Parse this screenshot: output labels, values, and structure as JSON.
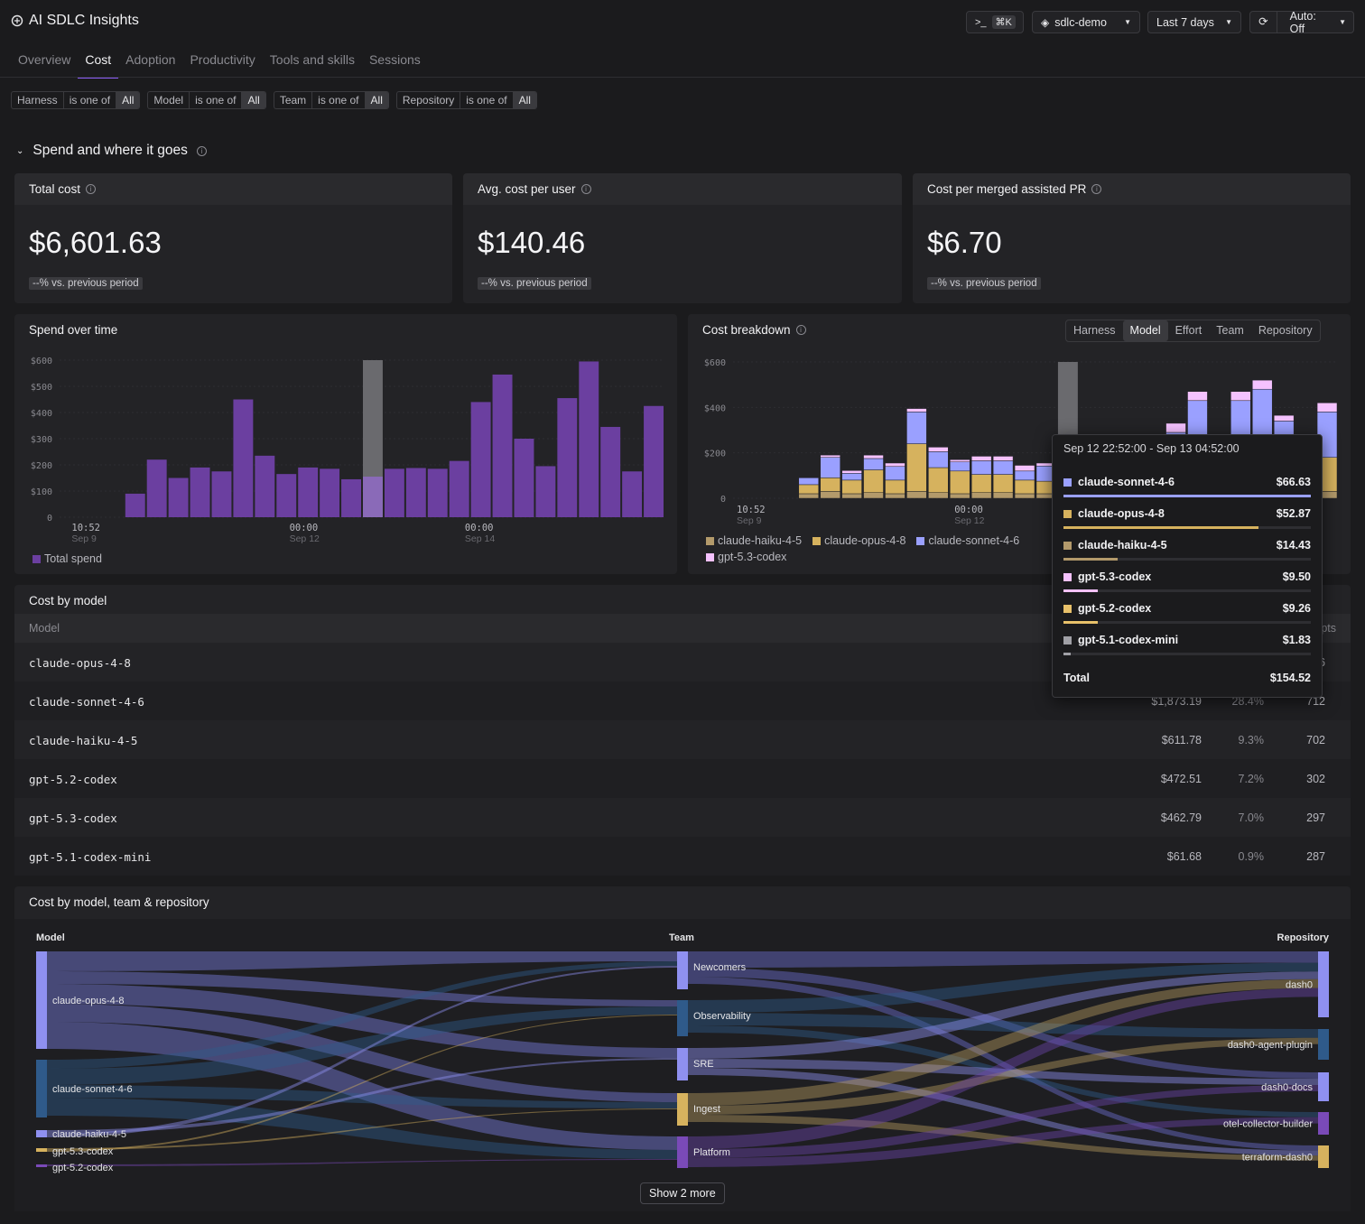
{
  "app": {
    "title": "AI SDLC Insights"
  },
  "toolbar": {
    "command_key": "⌘K",
    "workspace": "sdlc-demo",
    "time_range": "Last 7 days",
    "auto_refresh": "Auto: Off"
  },
  "tabs": [
    {
      "label": "Overview",
      "active": false
    },
    {
      "label": "Cost",
      "active": true
    },
    {
      "label": "Adoption",
      "active": false
    },
    {
      "label": "Productivity",
      "active": false
    },
    {
      "label": "Tools and skills",
      "active": false
    },
    {
      "label": "Sessions",
      "active": false
    }
  ],
  "filters": [
    {
      "field": "Harness",
      "op": "is one of",
      "value": "All"
    },
    {
      "field": "Model",
      "op": "is one of",
      "value": "All"
    },
    {
      "field": "Team",
      "op": "is one of",
      "value": "All"
    },
    {
      "field": "Repository",
      "op": "is one of",
      "value": "All"
    }
  ],
  "section": {
    "title": "Spend and where it goes"
  },
  "kpis": [
    {
      "label": "Total cost",
      "value": "$6,601.63",
      "delta": "--% vs. previous period"
    },
    {
      "label": "Avg. cost per user",
      "value": "$140.46",
      "delta": "--% vs. previous period"
    },
    {
      "label": "Cost per merged assisted PR",
      "value": "$6.70",
      "delta": "--% vs. previous period"
    }
  ],
  "spend_chart": {
    "title": "Spend over time",
    "legend": "Total spend"
  },
  "breakdown": {
    "title": "Cost breakdown",
    "toggle": [
      "Harness",
      "Model",
      "Effort",
      "Team",
      "Repository"
    ],
    "toggle_active": "Model",
    "legend": [
      "claude-haiku-4-5",
      "claude-opus-4-8",
      "claude-sonnet-4-6",
      "gpt-5.3-codex"
    ]
  },
  "tooltip": {
    "title": "Sep 12 22:52:00 - Sep 13 04:52:00",
    "rows": [
      {
        "label": "claude-sonnet-4-6",
        "value": "$66.63",
        "frac": 1.0,
        "color": "#9aa0ff"
      },
      {
        "label": "claude-opus-4-8",
        "value": "$52.87",
        "frac": 0.79,
        "color": "#d6b25e"
      },
      {
        "label": "claude-haiku-4-5",
        "value": "$14.43",
        "frac": 0.22,
        "color": "#b39a6b"
      },
      {
        "label": "gpt-5.3-codex",
        "value": "$9.50",
        "frac": 0.14,
        "color": "#f5c2ff"
      },
      {
        "label": "gpt-5.2-codex",
        "value": "$9.26",
        "frac": 0.14,
        "color": "#e8c16a"
      },
      {
        "label": "gpt-5.1-codex-mini",
        "value": "$1.83",
        "frac": 0.03,
        "color": "#a0a0a6"
      }
    ],
    "total_label": "Total",
    "total_value": "$154.52"
  },
  "cost_by_model": {
    "title": "Cost by model",
    "col_model": "Model",
    "col_prompts_partial": "pts",
    "rows": [
      {
        "name": "claude-opus-4-8",
        "cost": "",
        "share": "",
        "prompts": "6"
      },
      {
        "name": "claude-sonnet-4-6",
        "cost": "$1,873.19",
        "share": "28.4%",
        "prompts": "712"
      },
      {
        "name": "claude-haiku-4-5",
        "cost": "$611.78",
        "share": "9.3%",
        "prompts": "702"
      },
      {
        "name": "gpt-5.2-codex",
        "cost": "$472.51",
        "share": "7.2%",
        "prompts": "302"
      },
      {
        "name": "gpt-5.3-codex",
        "cost": "$462.79",
        "share": "7.0%",
        "prompts": "297"
      },
      {
        "name": "gpt-5.1-codex-mini",
        "cost": "$61.68",
        "share": "0.9%",
        "prompts": "287"
      }
    ]
  },
  "sankey": {
    "title": "Cost by model, team & repository",
    "col_model": "Model",
    "col_team": "Team",
    "col_repo": "Repository",
    "models": [
      "claude-opus-4-8",
      "claude-sonnet-4-6",
      "claude-haiku-4-5",
      "gpt-5.3-codex",
      "gpt-5.2-codex"
    ],
    "teams": [
      "Newcomers",
      "Observability",
      "SRE",
      "Ingest",
      "Platform"
    ],
    "repos": [
      "dash0",
      "dash0-agent-plugin",
      "dash0-docs",
      "otel-collector-builder",
      "terraform-dash0"
    ],
    "show_more": "Show 2 more"
  },
  "chart_data": [
    {
      "type": "bar",
      "title": "Spend over time",
      "ylim": [
        0,
        600
      ],
      "yticks": [
        "$600",
        "$500",
        "$400",
        "$300",
        "$200",
        "$100",
        "0"
      ],
      "xticks": [
        {
          "t": "10:52",
          "d": "Sep 9"
        },
        {
          "t": "00:00",
          "d": "Sep 12"
        },
        {
          "t": "00:00",
          "d": "Sep 14"
        }
      ],
      "series": [
        {
          "name": "Total spend",
          "values": [
            0,
            0,
            0,
            90,
            220,
            150,
            190,
            175,
            450,
            235,
            165,
            190,
            185,
            145,
            155,
            185,
            188,
            185,
            215,
            440,
            545,
            300,
            195,
            455,
            595,
            345,
            175,
            425
          ]
        }
      ],
      "highlight_index": 14,
      "color": "#6b3fa0"
    },
    {
      "type": "bar",
      "title": "Cost breakdown",
      "ylim": [
        0,
        600
      ],
      "yticks": [
        "$600",
        "$400",
        "$200",
        "0"
      ],
      "xticks": [
        {
          "t": "10:52",
          "d": "Sep 9"
        },
        {
          "t": "00:00",
          "d": "Sep 12"
        }
      ],
      "stack_order": [
        "claude-haiku-4-5",
        "claude-opus-4-8",
        "claude-sonnet-4-6",
        "gpt-5.3-codex"
      ],
      "colors": [
        "#b39a6b",
        "#d6b25e",
        "#9aa0ff",
        "#f5c2ff"
      ],
      "stacks": [
        [
          0,
          0,
          0,
          0
        ],
        [
          0,
          0,
          0,
          0
        ],
        [
          0,
          0,
          0,
          0
        ],
        [
          20,
          40,
          30,
          0
        ],
        [
          30,
          60,
          90,
          10
        ],
        [
          20,
          60,
          30,
          12
        ],
        [
          25,
          100,
          50,
          15
        ],
        [
          20,
          60,
          60,
          15
        ],
        [
          30,
          210,
          140,
          15
        ],
        [
          25,
          110,
          70,
          20
        ],
        [
          20,
          100,
          40,
          10
        ],
        [
          25,
          80,
          60,
          20
        ],
        [
          25,
          80,
          60,
          20
        ],
        [
          20,
          60,
          40,
          25
        ],
        [
          20,
          55,
          67,
          13
        ],
        [
          0,
          0,
          0,
          0
        ],
        [
          0,
          0,
          0,
          0
        ],
        [
          0,
          0,
          0,
          0
        ],
        [
          0,
          0,
          0,
          0
        ],
        [
          0,
          0,
          0,
          0
        ],
        [
          30,
          60,
          200,
          40
        ],
        [
          30,
          200,
          200,
          40
        ],
        [
          0,
          0,
          0,
          0
        ],
        [
          30,
          150,
          250,
          40
        ],
        [
          30,
          200,
          250,
          40
        ],
        [
          20,
          120,
          200,
          25
        ],
        [
          0,
          0,
          0,
          0
        ],
        [
          30,
          150,
          200,
          40
        ]
      ],
      "highlight_index": 15
    }
  ]
}
